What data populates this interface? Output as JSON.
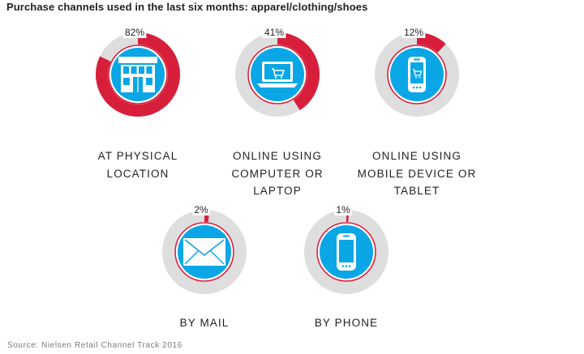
{
  "title": "Purchase channels used in the last six months: apparel/clothing/shoes",
  "source": "Source: Nielsen Retail Channel Track 2016",
  "colors": {
    "track": "#dedede",
    "accent": "#d71f3c",
    "icon_bg": "#0aa6e6",
    "icon_fg": "#ffffff"
  },
  "chart_data": {
    "type": "donut",
    "title": "Purchase channels used in the last six months: apparel/clothing/shoes",
    "unit": "%",
    "items": [
      {
        "label_lines": [
          "AT PHYSICAL",
          "LOCATION"
        ],
        "value": 82,
        "value_label": "82%",
        "icon": "store-icon"
      },
      {
        "label_lines": [
          "ONLINE USING",
          "COMPUTER OR",
          "LAPTOP"
        ],
        "value": 41,
        "value_label": "41%",
        "icon": "laptop-cart-icon"
      },
      {
        "label_lines": [
          "ONLINE USING",
          "MOBILE DEVICE OR",
          "TABLET"
        ],
        "value": 12,
        "value_label": "12%",
        "icon": "mobile-cart-icon"
      },
      {
        "label_lines": [
          "BY MAIL"
        ],
        "value": 2,
        "value_label": "2%",
        "icon": "envelope-icon"
      },
      {
        "label_lines": [
          "BY PHONE"
        ],
        "value": 1,
        "value_label": "1%",
        "icon": "phone-icon"
      }
    ]
  }
}
